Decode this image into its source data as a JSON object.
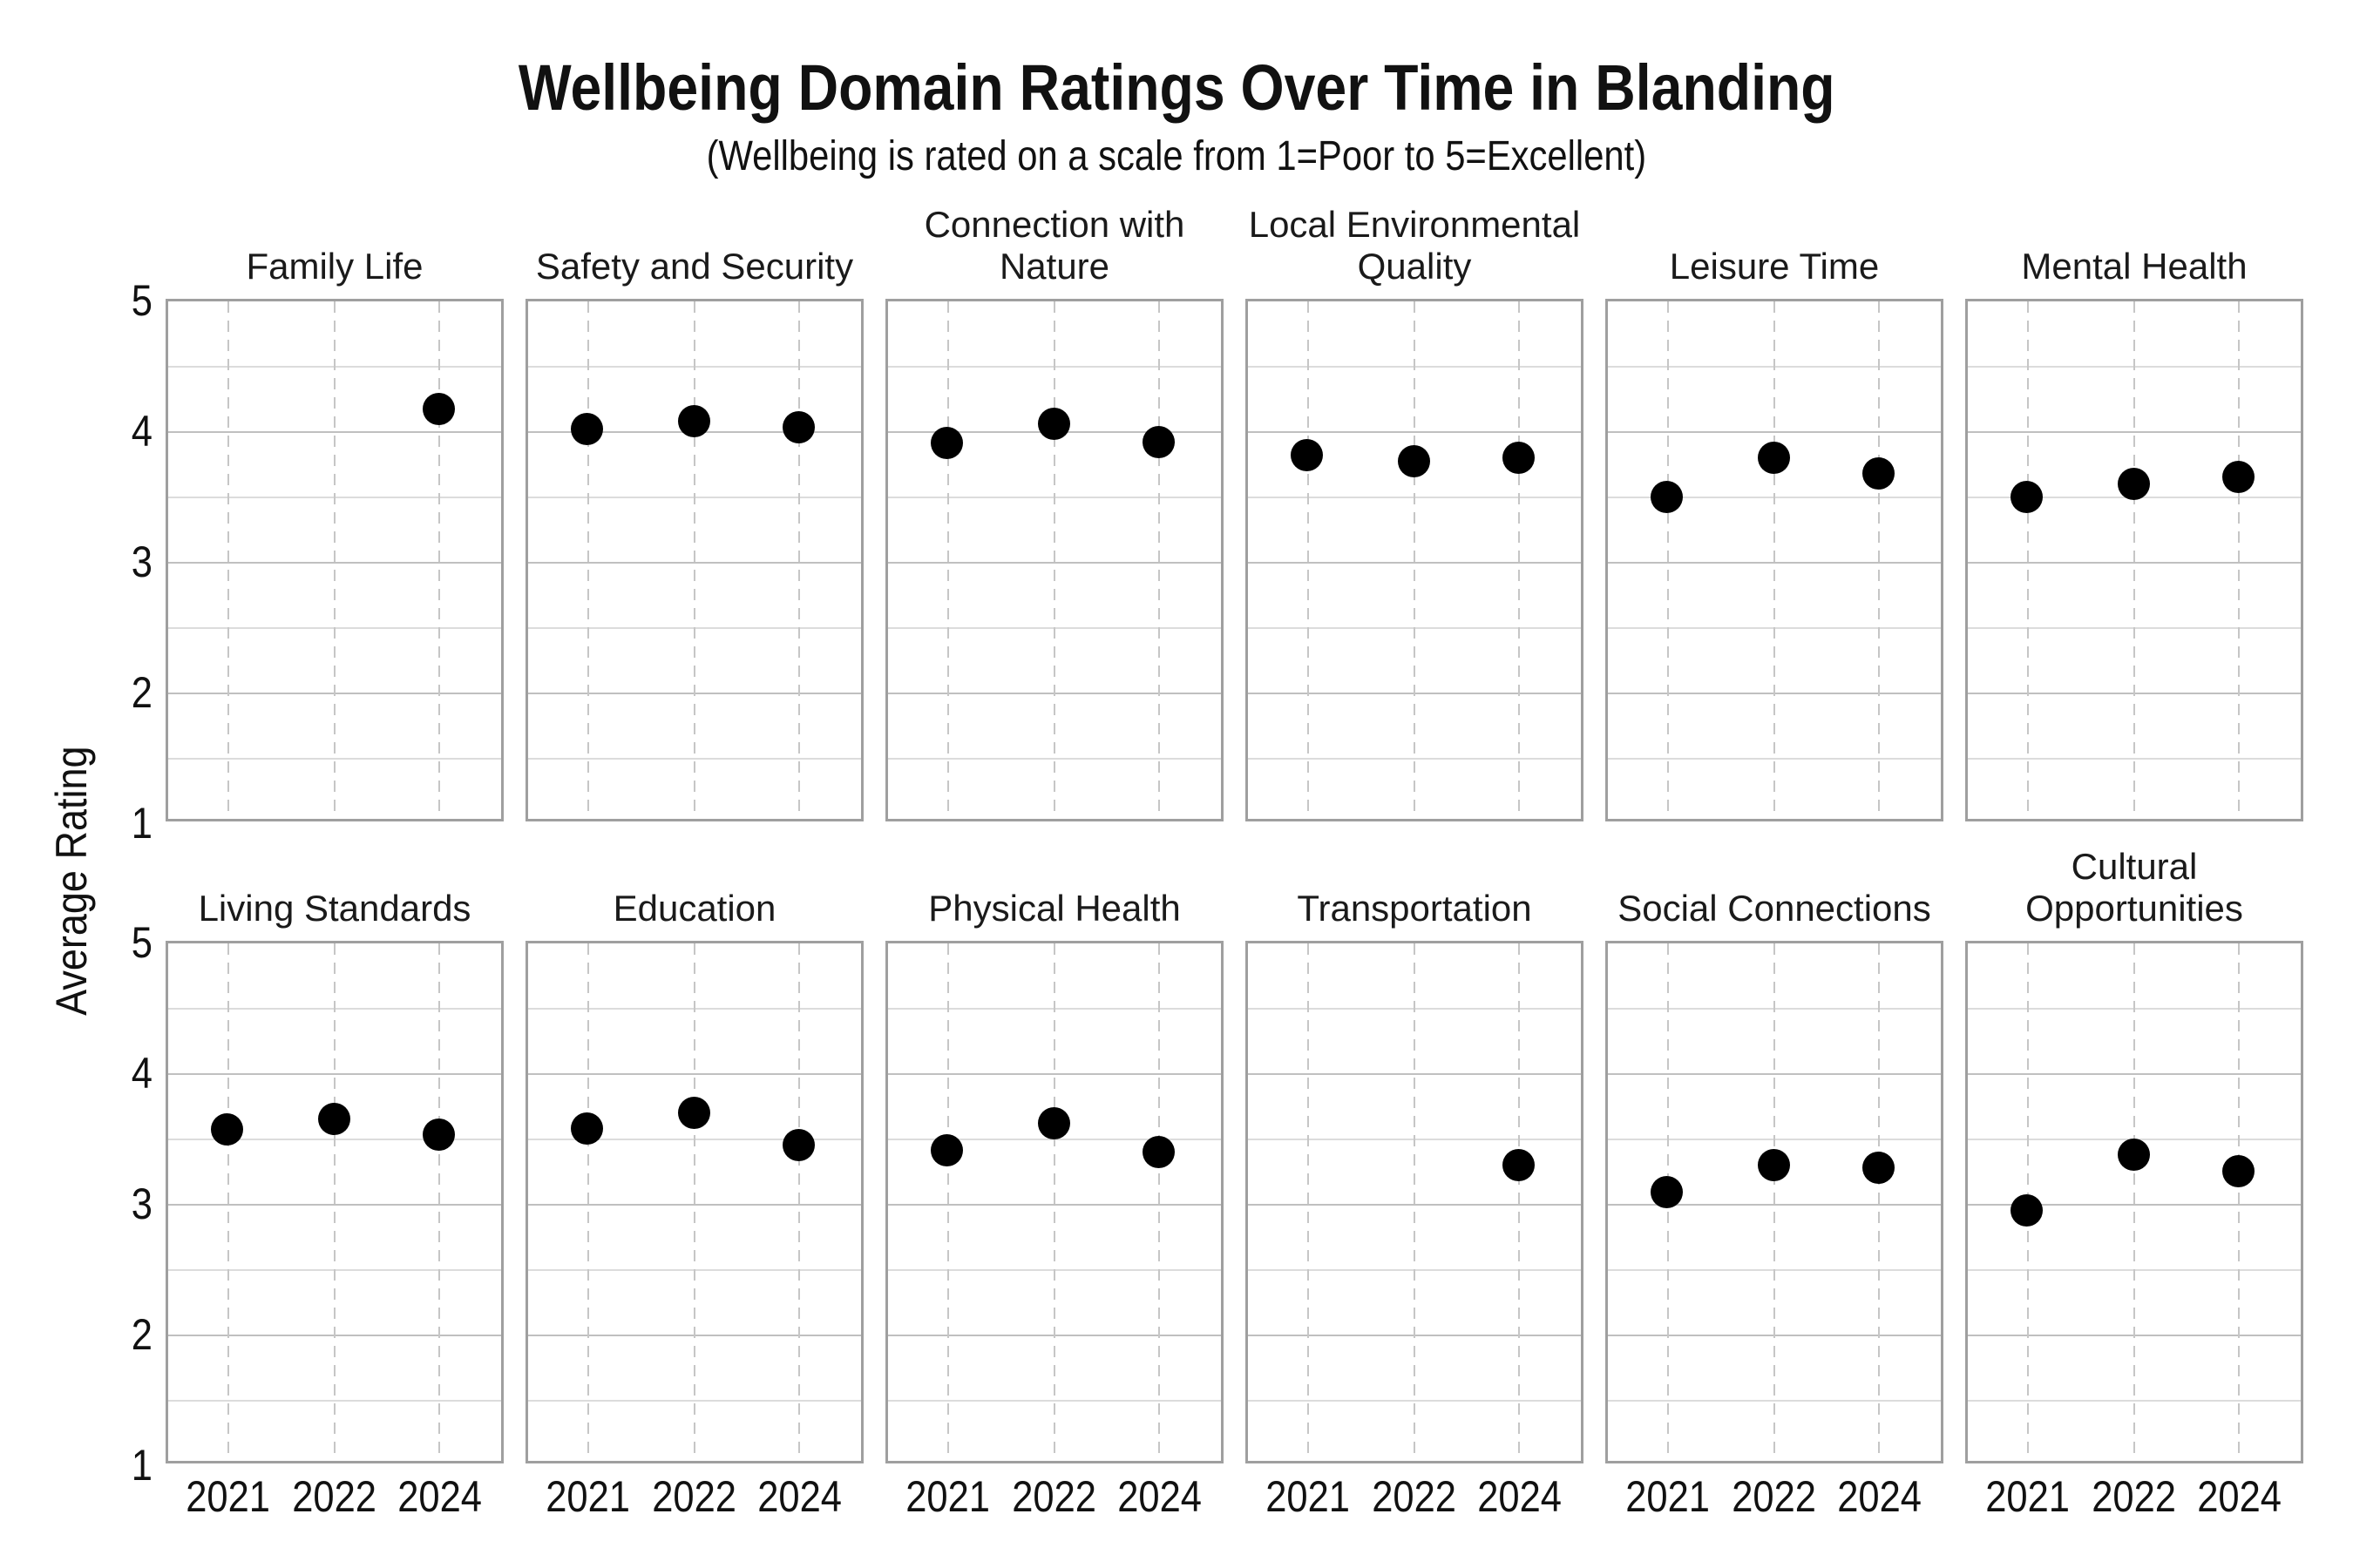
{
  "title": "Wellbeing Domain Ratings Over Time in Blanding",
  "subtitle": "(Wellbeing is rated on a scale from 1=Poor to 5=Excellent)",
  "y_axis_label": "Average Rating",
  "colors": {
    "point": "#000000",
    "text": "#111111",
    "panel_border": "#9f9f9f",
    "grid_major": "#c0c0c0",
    "grid_minor": "#dcdcdc",
    "grid_dashed": "#c6c6c6"
  },
  "chart_data": {
    "type": "scatter",
    "layout": "small-multiples, 2 rows x 6 columns, shared axes",
    "x_categories": [
      "2021",
      "2022",
      "2024"
    ],
    "ylabel": "Average Rating",
    "ylim": [
      1,
      5
    ],
    "yticks": [
      1,
      2,
      3,
      4,
      5
    ],
    "grid": true,
    "legend": "none",
    "panels": [
      {
        "title": "Family Life",
        "values": [
          null,
          null,
          4.17
        ]
      },
      {
        "title": "Safety and Security",
        "values": [
          4.02,
          4.08,
          4.03
        ]
      },
      {
        "title": "Connection with Nature",
        "values": [
          3.91,
          4.06,
          3.92
        ]
      },
      {
        "title": "Local Environmental Quality",
        "values": [
          3.82,
          3.77,
          3.8
        ]
      },
      {
        "title": "Leisure Time",
        "values": [
          3.5,
          3.8,
          3.68
        ]
      },
      {
        "title": "Mental Health",
        "values": [
          3.5,
          3.6,
          3.65
        ]
      },
      {
        "title": "Living Standards",
        "values": [
          3.57,
          3.65,
          3.53
        ]
      },
      {
        "title": "Education",
        "values": [
          3.58,
          3.7,
          3.45
        ]
      },
      {
        "title": "Physical Health",
        "values": [
          3.41,
          3.62,
          3.4
        ]
      },
      {
        "title": "Transportation",
        "values": [
          null,
          null,
          3.3
        ]
      },
      {
        "title": "Social Connections",
        "values": [
          3.09,
          3.3,
          3.28
        ]
      },
      {
        "title": "Cultural Opportunities",
        "values": [
          2.95,
          3.38,
          3.25
        ]
      }
    ]
  }
}
